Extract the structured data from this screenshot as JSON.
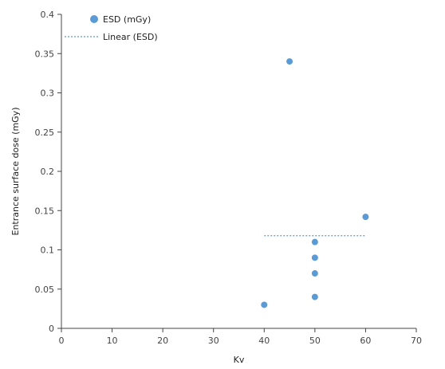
{
  "chart_data": {
    "type": "scatter",
    "title": "",
    "xlabel": "Kv",
    "ylabel": "Entrance surface dose (mGy)",
    "xlim": [
      0,
      70
    ],
    "ylim": [
      0,
      0.4
    ],
    "x_ticks": [
      "0",
      "10",
      "20",
      "30",
      "40",
      "50",
      "60",
      "70"
    ],
    "y_ticks": [
      "0",
      "0.05",
      "0.1",
      "0.15",
      "0.2",
      "0.25",
      "0.3",
      "0.35",
      "0.4"
    ],
    "grid": false,
    "legend_position": "top-left",
    "series": [
      {
        "name": "ESD (mGy)",
        "marker": "circle",
        "color": "#5B9BD5",
        "points": [
          {
            "x": 40,
            "y": 0.03
          },
          {
            "x": 45,
            "y": 0.34
          },
          {
            "x": 50,
            "y": 0.11
          },
          {
            "x": 50,
            "y": 0.09
          },
          {
            "x": 50,
            "y": 0.07
          },
          {
            "x": 50,
            "y": 0.04
          },
          {
            "x": 60,
            "y": 0.142
          }
        ]
      },
      {
        "name": "Linear (ESD)",
        "type": "trendline",
        "style": "dotted",
        "color": "#5B9BD5",
        "points": [
          {
            "x": 40,
            "y": 0.118
          },
          {
            "x": 60,
            "y": 0.118
          }
        ]
      }
    ]
  }
}
